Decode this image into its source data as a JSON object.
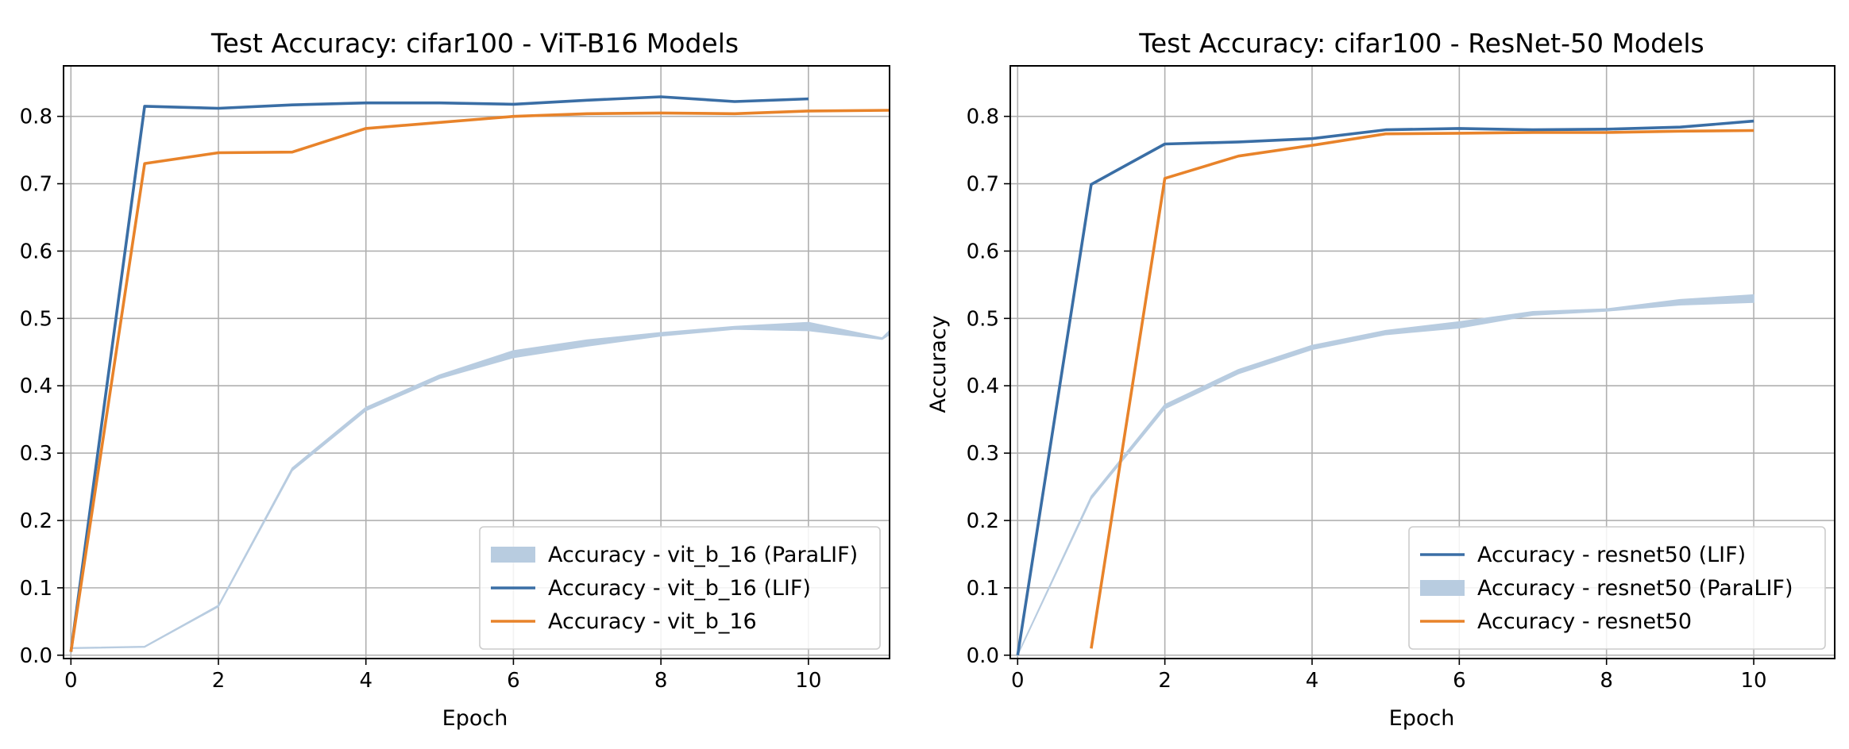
{
  "colors": {
    "lif": "#3a6ea5",
    "paralif": "#b8cce0",
    "baseline": "#e8832a",
    "grid": "#b0b0b0"
  },
  "chart_data": [
    {
      "type": "line",
      "title": "Test Accuracy: cifar100 - ViT-B16 Models",
      "xlabel": "Epoch",
      "ylabel": "",
      "xlim": [
        -0.1,
        11.1
      ],
      "ylim": [
        -0.005,
        0.875
      ],
      "xticks": [
        0,
        2,
        4,
        6,
        8,
        10
      ],
      "yticks": [
        0.0,
        0.1,
        0.2,
        0.3,
        0.4,
        0.5,
        0.6,
        0.7,
        0.8
      ],
      "grid": true,
      "legend_position": "lower right",
      "legend": [
        {
          "label": "Accuracy - vit_b_16 (ParaLIF)",
          "series": 0
        },
        {
          "label": "Accuracy - vit_b_16 (LIF)",
          "series": 1
        },
        {
          "label": "Accuracy - vit_b_16",
          "series": 2
        }
      ],
      "series": [
        {
          "name": "Accuracy - vit_b_16 (ParaLIF)",
          "style": "band",
          "color": "#b8cce0",
          "x": [
            0,
            1,
            2,
            3,
            4,
            5,
            6,
            7,
            8,
            9,
            10,
            11,
            11.1
          ],
          "low": [
            0.01,
            0.012,
            0.072,
            0.274,
            0.363,
            0.411,
            0.442,
            0.459,
            0.474,
            0.484,
            0.482,
            0.469,
            0.476
          ],
          "high": [
            0.011,
            0.013,
            0.074,
            0.278,
            0.368,
            0.416,
            0.452,
            0.468,
            0.479,
            0.488,
            0.494,
            0.471,
            0.482
          ]
        },
        {
          "name": "Accuracy - vit_b_16 (LIF)",
          "style": "line",
          "color": "#3a6ea5",
          "x": [
            0,
            1,
            2,
            3,
            4,
            5,
            6,
            7,
            8,
            9,
            10
          ],
          "y": [
            0.005,
            0.815,
            0.812,
            0.817,
            0.82,
            0.82,
            0.818,
            0.824,
            0.829,
            0.822,
            0.826
          ]
        },
        {
          "name": "Accuracy - vit_b_16",
          "style": "line",
          "color": "#e8832a",
          "x": [
            0,
            1,
            2,
            3,
            4,
            5,
            6,
            7,
            8,
            9,
            10,
            11.1
          ],
          "y": [
            0.005,
            0.73,
            0.746,
            0.747,
            0.782,
            0.791,
            0.8,
            0.804,
            0.805,
            0.804,
            0.808,
            0.809
          ]
        }
      ]
    },
    {
      "type": "line",
      "title": "Test Accuracy: cifar100 - ResNet-50 Models",
      "xlabel": "Epoch",
      "ylabel": "Accuracy",
      "xlim": [
        -0.1,
        11.1
      ],
      "ylim": [
        -0.005,
        0.875
      ],
      "xticks": [
        0,
        2,
        4,
        6,
        8,
        10
      ],
      "yticks": [
        0.0,
        0.1,
        0.2,
        0.3,
        0.4,
        0.5,
        0.6,
        0.7,
        0.8
      ],
      "grid": true,
      "legend_position": "lower right",
      "legend": [
        {
          "label": "Accuracy - resnet50 (LIF)",
          "series": 1
        },
        {
          "label": "Accuracy - resnet50 (ParaLIF)",
          "series": 0
        },
        {
          "label": "Accuracy - resnet50",
          "series": 2
        }
      ],
      "series": [
        {
          "name": "Accuracy - resnet50 (ParaLIF)",
          "style": "band",
          "color": "#b8cce0",
          "x": [
            0,
            1,
            2,
            3,
            4,
            5,
            6,
            7,
            8,
            9,
            10
          ],
          "low": [
            0.0,
            0.232,
            0.366,
            0.418,
            0.454,
            0.476,
            0.486,
            0.505,
            0.511,
            0.52,
            0.524
          ],
          "high": [
            0.001,
            0.236,
            0.372,
            0.424,
            0.46,
            0.482,
            0.495,
            0.51,
            0.514,
            0.528,
            0.535
          ]
        },
        {
          "name": "Accuracy - resnet50 (LIF)",
          "style": "line",
          "color": "#3a6ea5",
          "x": [
            0,
            1,
            2,
            3,
            4,
            5,
            6,
            7,
            8,
            9,
            10
          ],
          "y": [
            0.0,
            0.699,
            0.759,
            0.762,
            0.767,
            0.78,
            0.782,
            0.78,
            0.781,
            0.784,
            0.793
          ]
        },
        {
          "name": "Accuracy - resnet50",
          "style": "line",
          "color": "#e8832a",
          "x": [
            1,
            2,
            3,
            4,
            5,
            6,
            7,
            8,
            9,
            10
          ],
          "y": [
            0.01,
            0.708,
            0.741,
            0.757,
            0.774,
            0.775,
            0.776,
            0.776,
            0.778,
            0.779
          ]
        }
      ]
    }
  ]
}
